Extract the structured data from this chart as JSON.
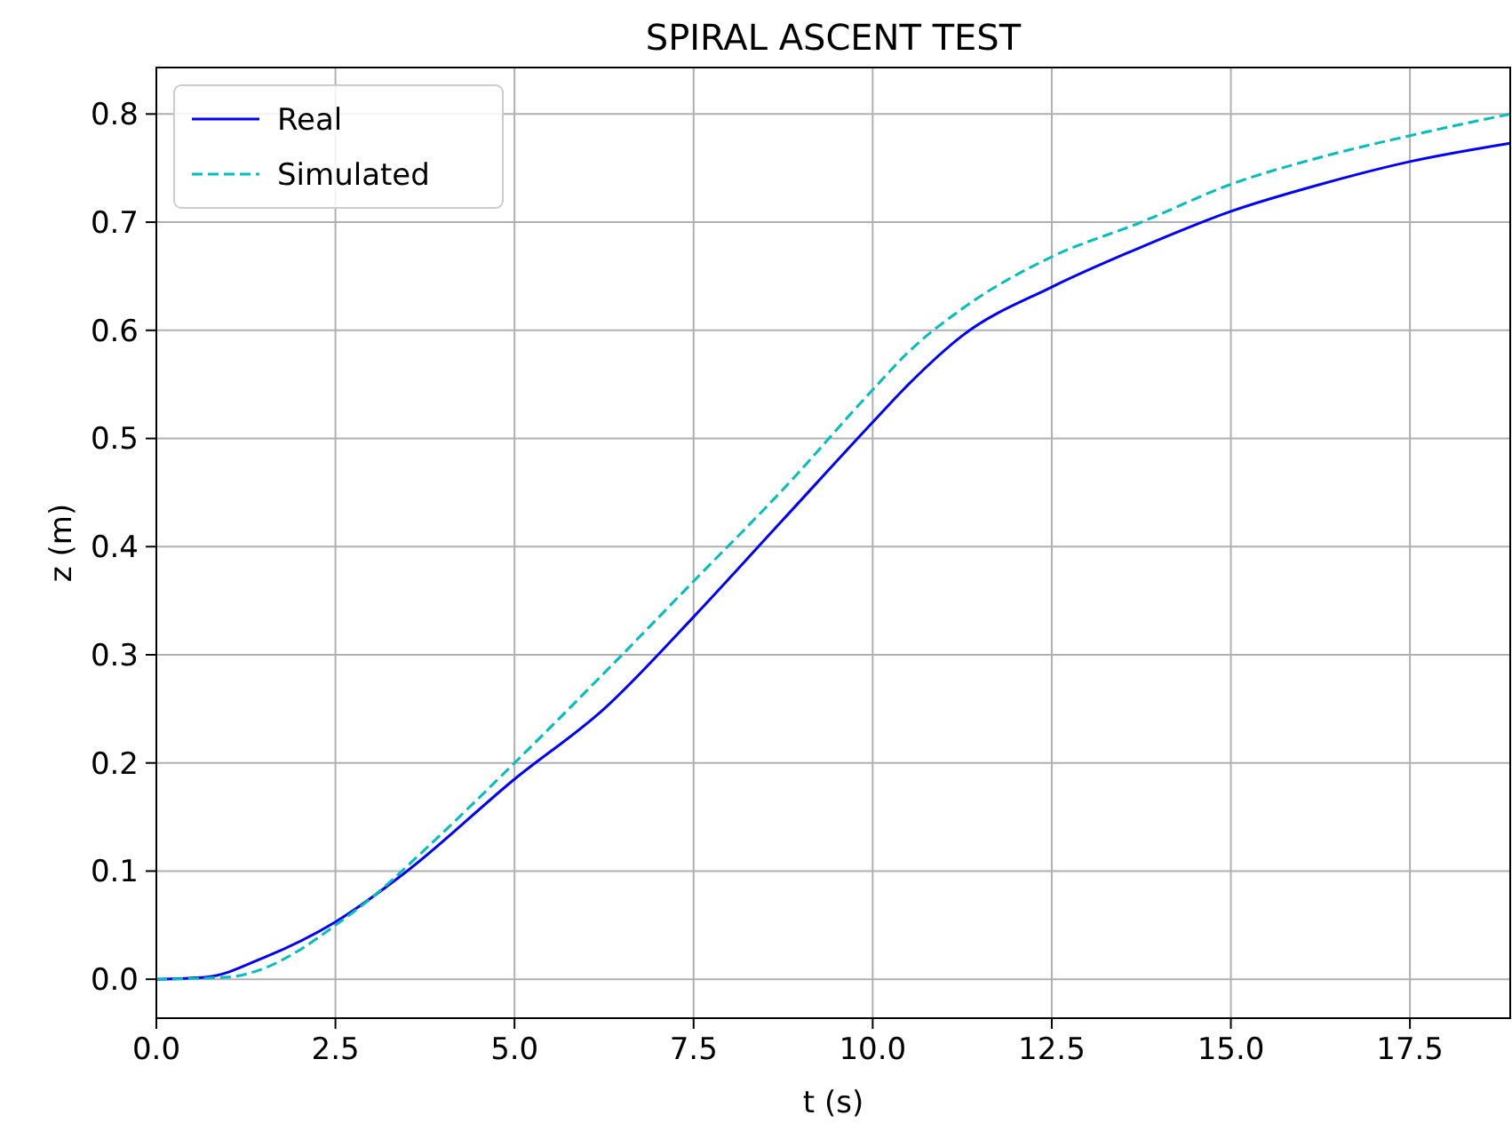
{
  "chart_data": {
    "type": "line",
    "title": "SPIRAL ASCENT TEST",
    "xlabel": "t (s)",
    "ylabel": "z (m)",
    "xlim": [
      0,
      18.9
    ],
    "ylim": [
      -0.036,
      0.843
    ],
    "xticks": [
      {
        "value": 0,
        "label": "0.0"
      },
      2.5,
      {
        "value": 5,
        "label": "5.0"
      },
      7.5,
      {
        "value": 10,
        "label": "10.0"
      },
      12.5,
      {
        "value": 15,
        "label": "15.0"
      },
      17.5
    ],
    "yticks": [
      {
        "value": 0,
        "label": "0.0"
      },
      0.1,
      0.2,
      0.3,
      0.4,
      0.5,
      0.6,
      0.7,
      0.8
    ],
    "grid": true,
    "legend": "top left",
    "marker": "none",
    "series": [
      {
        "name": "Real",
        "color": "#0000ff",
        "line_style": "solid",
        "x": [
          0,
          0.7,
          1.5,
          2.5,
          3.5,
          5,
          6.25,
          7.5,
          8.75,
          10,
          10.5,
          11.25,
          12.5,
          13.75,
          15,
          16.25,
          17.5,
          18.9
        ],
        "values": [
          0,
          0.002,
          0.02,
          0.053,
          0.1,
          0.185,
          0.25,
          0.335,
          0.425,
          0.515,
          0.55,
          0.595,
          0.64,
          0.677,
          0.71,
          0.735,
          0.756,
          0.773
        ]
      },
      {
        "name": "Simulated",
        "color": "#00bfbf",
        "line_style": "dashed",
        "x": [
          0,
          1,
          1.5,
          2,
          2.5,
          3,
          3.75,
          5,
          6.25,
          7.5,
          8.75,
          10,
          10.5,
          11.25,
          12.5,
          13.75,
          15,
          16.25,
          17.5,
          18.9
        ],
        "values": [
          0,
          0.002,
          0.01,
          0.027,
          0.05,
          0.075,
          0.12,
          0.2,
          0.283,
          0.368,
          0.453,
          0.545,
          0.58,
          0.62,
          0.668,
          0.7,
          0.735,
          0.76,
          0.78,
          0.8
        ]
      }
    ]
  }
}
